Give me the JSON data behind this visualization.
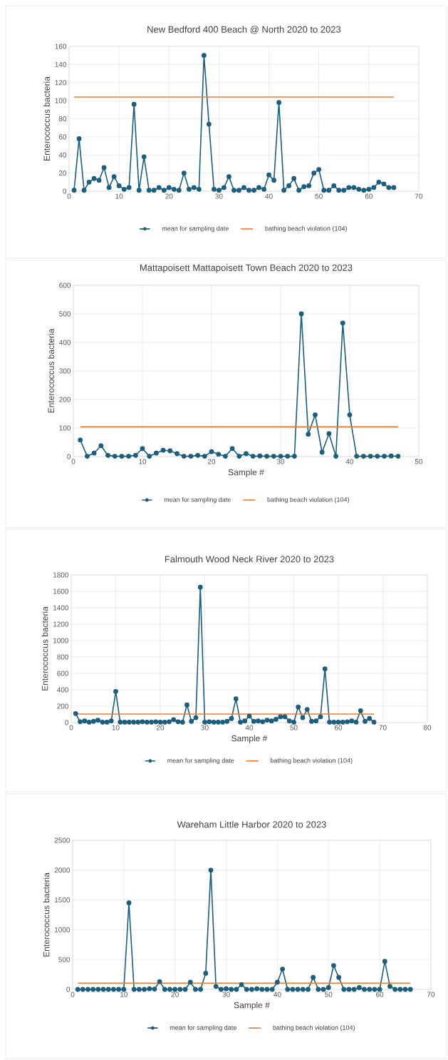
{
  "chart_data": [
    {
      "type": "line",
      "title": "New Bedford 400 Beach @ North 2020 to 2023",
      "ylabel": "Enterococcus bacteria",
      "xlim": [
        0,
        70
      ],
      "xticks": [
        0,
        10,
        20,
        30,
        40,
        50,
        60,
        70
      ],
      "ylim": [
        0,
        160
      ],
      "yticks": [
        0,
        20,
        40,
        60,
        80,
        100,
        120,
        140,
        160
      ],
      "grid": true,
      "legend": "bottom",
      "series": [
        {
          "name": "mean for sampling date",
          "color": "#1b5e7e",
          "marker": "circle",
          "x": [
            1,
            2,
            3,
            4,
            5,
            6,
            7,
            8,
            9,
            10,
            11,
            12,
            13,
            14,
            15,
            16,
            17,
            18,
            19,
            20,
            21,
            22,
            23,
            24,
            25,
            26,
            27,
            28,
            29,
            30,
            31,
            32,
            33,
            34,
            35,
            36,
            37,
            38,
            39,
            40,
            41,
            42,
            43,
            44,
            45,
            46,
            47,
            48,
            49,
            50,
            51,
            52,
            53,
            54,
            55,
            56,
            57,
            58,
            59,
            60,
            61,
            62,
            63,
            64,
            65
          ],
          "values": [
            1,
            58,
            1,
            10,
            14,
            12,
            26,
            4,
            16,
            6,
            2,
            4,
            96,
            1,
            38,
            1,
            1,
            4,
            1,
            4,
            2,
            1,
            20,
            2,
            4,
            2,
            150,
            74,
            2,
            1,
            4,
            16,
            1,
            1,
            4,
            1,
            1,
            4,
            2,
            18,
            12,
            98,
            1,
            6,
            14,
            1,
            5,
            6,
            20,
            24,
            1,
            1,
            6,
            1,
            1,
            4,
            4,
            2,
            1,
            2,
            4,
            10,
            8,
            4,
            4
          ]
        },
        {
          "name": "bathing beach violation (104)",
          "color": "#ed7d31",
          "marker": "none",
          "x": [
            1,
            65
          ],
          "values": [
            104,
            104
          ]
        }
      ]
    },
    {
      "type": "line",
      "title": "Mattapoisett Mattapoisett Town Beach 2020 to 2023",
      "xlabel": "Sample #",
      "ylabel": "Enterococcus bacteria",
      "xlim": [
        0,
        50
      ],
      "xticks": [
        0,
        10,
        20,
        30,
        40,
        50
      ],
      "ylim": [
        0,
        600
      ],
      "yticks": [
        0,
        100,
        200,
        300,
        400,
        500,
        600
      ],
      "grid": true,
      "legend": "bottom",
      "series": [
        {
          "name": "mean for sampling date",
          "color": "#1b5e7e",
          "marker": "circle",
          "x": [
            1,
            2,
            3,
            4,
            5,
            6,
            7,
            8,
            9,
            10,
            11,
            12,
            13,
            14,
            15,
            16,
            17,
            18,
            19,
            20,
            21,
            22,
            23,
            24,
            25,
            26,
            27,
            28,
            29,
            30,
            31,
            32,
            33,
            34,
            35,
            36,
            37,
            38,
            39,
            40,
            41,
            42,
            43,
            44,
            45,
            46,
            47
          ],
          "values": [
            58,
            1,
            12,
            38,
            4,
            1,
            1,
            1,
            4,
            28,
            1,
            12,
            22,
            20,
            10,
            1,
            1,
            4,
            1,
            17,
            8,
            1,
            28,
            1,
            10,
            1,
            2,
            1,
            1,
            1,
            1,
            1,
            500,
            78,
            146,
            15,
            80,
            1,
            468,
            146,
            1,
            1,
            1,
            1,
            1,
            2,
            1
          ]
        },
        {
          "name": "bathing beach violation (104)",
          "color": "#ed7d31",
          "marker": "none",
          "x": [
            1,
            47
          ],
          "values": [
            104,
            104
          ]
        }
      ]
    },
    {
      "type": "line",
      "title": "Falmouth Wood Neck River 2020 to 2023",
      "xlabel": "Sample #",
      "ylabel": "Enterococcus bacteria",
      "xlim": [
        0,
        80
      ],
      "xticks": [
        0,
        10,
        20,
        30,
        40,
        50,
        60,
        70,
        80
      ],
      "ylim": [
        0,
        1800
      ],
      "yticks": [
        0,
        200,
        400,
        600,
        800,
        1000,
        1200,
        1400,
        1600,
        1800
      ],
      "grid": true,
      "legend": "bottom",
      "series": [
        {
          "name": "mean for sampling date",
          "color": "#1b5e7e",
          "marker": "circle",
          "x": [
            1,
            2,
            3,
            4,
            5,
            6,
            7,
            8,
            9,
            10,
            11,
            12,
            13,
            14,
            15,
            16,
            17,
            18,
            19,
            20,
            21,
            22,
            23,
            24,
            25,
            26,
            27,
            28,
            29,
            30,
            31,
            32,
            33,
            34,
            35,
            36,
            37,
            38,
            39,
            40,
            41,
            42,
            43,
            44,
            45,
            46,
            47,
            48,
            49,
            50,
            51,
            52,
            53,
            54,
            55,
            56,
            57,
            58,
            59,
            60,
            61,
            62,
            63,
            64,
            65,
            66,
            67,
            68
          ],
          "values": [
            110,
            10,
            20,
            5,
            15,
            30,
            5,
            5,
            20,
            380,
            5,
            5,
            5,
            5,
            5,
            10,
            5,
            5,
            10,
            5,
            5,
            10,
            35,
            10,
            5,
            215,
            15,
            60,
            1650,
            5,
            10,
            5,
            5,
            5,
            15,
            50,
            290,
            5,
            20,
            80,
            15,
            20,
            10,
            30,
            20,
            40,
            70,
            70,
            20,
            5,
            190,
            60,
            160,
            15,
            20,
            70,
            655,
            5,
            5,
            5,
            5,
            10,
            20,
            5,
            145,
            15,
            50,
            5
          ]
        },
        {
          "name": "bathing beach violation (104)",
          "color": "#ed7d31",
          "marker": "none",
          "x": [
            1,
            68
          ],
          "values": [
            104,
            104
          ]
        }
      ]
    },
    {
      "type": "line",
      "title": "Wareham Little Harbor 2020 to 2023",
      "xlabel": "Sample #",
      "ylabel": "Enterococcus bacteria",
      "xlim": [
        0,
        70
      ],
      "xticks": [
        0,
        10,
        20,
        30,
        40,
        50,
        60,
        70
      ],
      "ylim": [
        0,
        2500
      ],
      "yticks": [
        0,
        500,
        1000,
        1500,
        2000,
        2500
      ],
      "grid": true,
      "legend": "bottom",
      "series": [
        {
          "name": "mean for sampling date",
          "color": "#1b5e7e",
          "marker": "circle",
          "x": [
            1,
            2,
            3,
            4,
            5,
            6,
            7,
            8,
            9,
            10,
            11,
            12,
            13,
            14,
            15,
            16,
            17,
            18,
            19,
            20,
            21,
            22,
            23,
            24,
            25,
            26,
            27,
            28,
            29,
            30,
            31,
            32,
            33,
            34,
            35,
            36,
            37,
            38,
            39,
            40,
            41,
            42,
            43,
            44,
            45,
            46,
            47,
            48,
            49,
            50,
            51,
            52,
            53,
            54,
            55,
            56,
            57,
            58,
            59,
            60,
            61,
            62,
            63,
            64,
            65,
            66
          ],
          "values": [
            0,
            0,
            0,
            0,
            0,
            0,
            0,
            0,
            0,
            0,
            1450,
            0,
            0,
            0,
            10,
            5,
            130,
            0,
            0,
            0,
            0,
            0,
            120,
            0,
            0,
            270,
            2000,
            50,
            0,
            10,
            0,
            0,
            80,
            0,
            0,
            10,
            0,
            0,
            0,
            120,
            340,
            0,
            0,
            0,
            0,
            0,
            200,
            0,
            0,
            30,
            400,
            200,
            0,
            0,
            0,
            30,
            0,
            0,
            0,
            0,
            470,
            50,
            0,
            0,
            0,
            0
          ]
        },
        {
          "name": "bathing beach violation (104)",
          "color": "#ed7d31",
          "marker": "none",
          "x": [
            1,
            66
          ],
          "values": [
            104,
            104
          ]
        }
      ]
    }
  ]
}
